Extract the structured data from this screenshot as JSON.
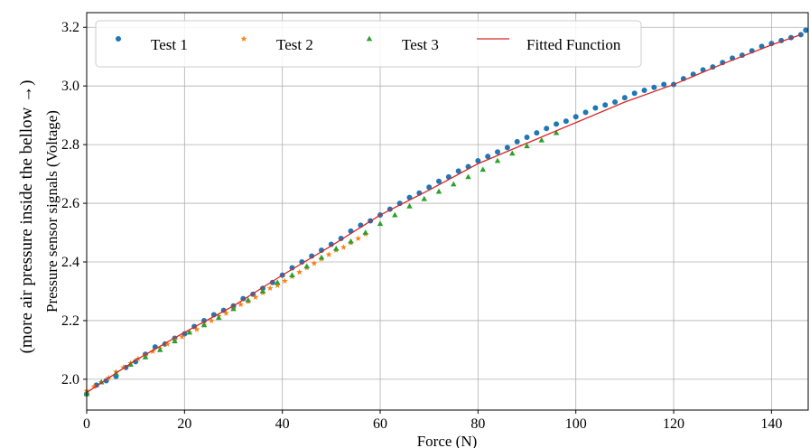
{
  "chart_data": {
    "type": "scatter",
    "xlabel": "Force (N)",
    "ylabel": "Pressure sensor signals (Voltage)",
    "ylabel_outer": "(more air pressure inside the bellow →)",
    "xlim": [
      0,
      147.5
    ],
    "ylim": [
      1.895,
      3.25
    ],
    "xticks": [
      0,
      20,
      40,
      60,
      80,
      100,
      120,
      140
    ],
    "yticks": [
      2.0,
      2.2,
      2.4,
      2.6,
      2.8,
      3.0,
      3.2
    ],
    "xtick_labels": [
      "0",
      "20",
      "40",
      "60",
      "80",
      "100",
      "120",
      "140"
    ],
    "ytick_labels": [
      "2.0",
      "2.2",
      "2.4",
      "2.6",
      "2.8",
      "3.0",
      "3.2"
    ],
    "grid": true,
    "legend_position": "top",
    "series": [
      {
        "name": "Test 1",
        "marker": "circle",
        "color": "#1f77b4",
        "x": [
          0,
          2,
          4,
          6,
          8,
          10,
          12,
          14,
          16,
          18,
          20,
          22,
          24,
          26,
          28,
          30,
          32,
          34,
          36,
          38,
          40,
          42,
          44,
          46,
          48,
          50,
          52,
          54,
          56,
          58,
          60,
          62,
          64,
          66,
          68,
          70,
          72,
          74,
          76,
          78,
          80,
          82,
          84,
          86,
          88,
          90,
          92,
          94,
          96,
          98,
          100,
          102,
          104,
          106,
          108,
          110,
          112,
          114,
          116,
          118,
          120,
          122,
          124,
          126,
          128,
          130,
          132,
          134,
          136,
          138,
          140,
          142,
          144,
          146,
          147
        ],
        "y": [
          1.95,
          1.98,
          1.995,
          2.01,
          2.04,
          2.06,
          2.085,
          2.11,
          2.12,
          2.14,
          2.155,
          2.18,
          2.2,
          2.22,
          2.235,
          2.25,
          2.275,
          2.29,
          2.31,
          2.33,
          2.355,
          2.38,
          2.4,
          2.42,
          2.44,
          2.46,
          2.48,
          2.505,
          2.525,
          2.54,
          2.56,
          2.58,
          2.6,
          2.62,
          2.635,
          2.655,
          2.675,
          2.69,
          2.71,
          2.725,
          2.745,
          2.76,
          2.775,
          2.79,
          2.81,
          2.825,
          2.84,
          2.855,
          2.87,
          2.88,
          2.895,
          2.91,
          2.925,
          2.935,
          2.945,
          2.96,
          2.975,
          2.985,
          2.995,
          3.005,
          3.005,
          3.025,
          3.04,
          3.055,
          3.065,
          3.08,
          3.095,
          3.105,
          3.12,
          3.135,
          3.145,
          3.155,
          3.165,
          3.175,
          3.19
        ]
      },
      {
        "name": "Test 2",
        "marker": "star",
        "color": "#ff7f0e",
        "x": [
          0,
          1.5,
          3,
          4.5,
          6,
          7.5,
          9,
          10.5,
          12,
          13.5,
          15,
          16.5,
          18,
          19.5,
          21,
          22.5,
          24,
          25.5,
          27,
          28.5,
          30,
          31.5,
          33,
          34.5,
          36,
          37.5,
          39,
          40.5,
          42,
          43.5,
          45,
          46.5,
          48,
          49.5,
          51,
          52.5,
          54,
          55.5,
          57
        ],
        "y": [
          1.96,
          1.975,
          1.99,
          2.005,
          2.025,
          2.04,
          2.055,
          2.07,
          2.08,
          2.095,
          2.105,
          2.12,
          2.135,
          2.145,
          2.16,
          2.17,
          2.185,
          2.2,
          2.215,
          2.225,
          2.24,
          2.255,
          2.265,
          2.28,
          2.295,
          2.31,
          2.32,
          2.335,
          2.35,
          2.365,
          2.38,
          2.395,
          2.41,
          2.425,
          2.44,
          2.45,
          2.465,
          2.48,
          2.495
        ]
      },
      {
        "name": "Test 3",
        "marker": "triangle",
        "color": "#2ca02c",
        "x": [
          0,
          3,
          6,
          9,
          12,
          15,
          18,
          21,
          24,
          27,
          30,
          33,
          36,
          39,
          42,
          45,
          48,
          51,
          54,
          57,
          60,
          63,
          66,
          69,
          72,
          75,
          78,
          81,
          84,
          87,
          90,
          93,
          96
        ],
        "y": [
          1.95,
          1.99,
          2.02,
          2.05,
          2.075,
          2.1,
          2.13,
          2.16,
          2.185,
          2.21,
          2.24,
          2.27,
          2.3,
          2.33,
          2.355,
          2.385,
          2.415,
          2.445,
          2.47,
          2.5,
          2.53,
          2.56,
          2.59,
          2.615,
          2.64,
          2.665,
          2.69,
          2.715,
          2.745,
          2.77,
          2.795,
          2.815,
          2.84
        ]
      },
      {
        "name": "Fitted Function",
        "marker": "line",
        "color": "#d62728",
        "x": [
          0,
          10,
          20,
          30,
          40,
          50,
          60,
          70,
          80,
          90,
          100,
          110,
          120,
          130,
          140,
          146
        ],
        "y": [
          1.955,
          2.065,
          2.16,
          2.25,
          2.355,
          2.455,
          2.56,
          2.645,
          2.735,
          2.805,
          2.875,
          2.945,
          3.005,
          3.075,
          3.14,
          3.175
        ]
      }
    ]
  }
}
